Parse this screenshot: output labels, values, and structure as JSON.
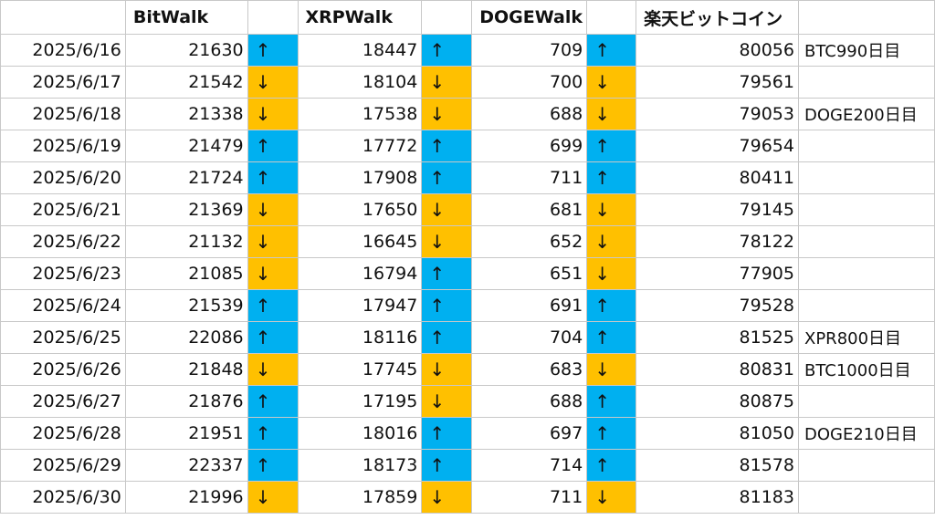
{
  "headers": [
    "",
    "BitWalk",
    "",
    "XRPWalk",
    "",
    "DOGEWalk",
    "",
    "楽天ビットコイン",
    ""
  ],
  "arrow_symbols": {
    "up": "↑",
    "down": "↓"
  },
  "colors": {
    "up": "#00b0f0",
    "down": "#ffc000",
    "grid": "#c8c8c8"
  },
  "rows": [
    {
      "date": "2025/6/16",
      "bit": "21630",
      "bit_dir": "up",
      "xrp": "18447",
      "xrp_dir": "up",
      "doge": "709",
      "doge_dir": "up",
      "rakuten": "80056",
      "note": "BTC990日目"
    },
    {
      "date": "2025/6/17",
      "bit": "21542",
      "bit_dir": "down",
      "xrp": "18104",
      "xrp_dir": "down",
      "doge": "700",
      "doge_dir": "down",
      "rakuten": "79561",
      "note": ""
    },
    {
      "date": "2025/6/18",
      "bit": "21338",
      "bit_dir": "down",
      "xrp": "17538",
      "xrp_dir": "down",
      "doge": "688",
      "doge_dir": "down",
      "rakuten": "79053",
      "note": "DOGE200日目"
    },
    {
      "date": "2025/6/19",
      "bit": "21479",
      "bit_dir": "up",
      "xrp": "17772",
      "xrp_dir": "up",
      "doge": "699",
      "doge_dir": "up",
      "rakuten": "79654",
      "note": ""
    },
    {
      "date": "2025/6/20",
      "bit": "21724",
      "bit_dir": "up",
      "xrp": "17908",
      "xrp_dir": "up",
      "doge": "711",
      "doge_dir": "up",
      "rakuten": "80411",
      "note": ""
    },
    {
      "date": "2025/6/21",
      "bit": "21369",
      "bit_dir": "down",
      "xrp": "17650",
      "xrp_dir": "down",
      "doge": "681",
      "doge_dir": "down",
      "rakuten": "79145",
      "note": ""
    },
    {
      "date": "2025/6/22",
      "bit": "21132",
      "bit_dir": "down",
      "xrp": "16645",
      "xrp_dir": "down",
      "doge": "652",
      "doge_dir": "down",
      "rakuten": "78122",
      "note": ""
    },
    {
      "date": "2025/6/23",
      "bit": "21085",
      "bit_dir": "down",
      "xrp": "16794",
      "xrp_dir": "up",
      "doge": "651",
      "doge_dir": "down",
      "rakuten": "77905",
      "note": ""
    },
    {
      "date": "2025/6/24",
      "bit": "21539",
      "bit_dir": "up",
      "xrp": "17947",
      "xrp_dir": "up",
      "doge": "691",
      "doge_dir": "up",
      "rakuten": "79528",
      "note": ""
    },
    {
      "date": "2025/6/25",
      "bit": "22086",
      "bit_dir": "up",
      "xrp": "18116",
      "xrp_dir": "up",
      "doge": "704",
      "doge_dir": "up",
      "rakuten": "81525",
      "note": "XPR800日目"
    },
    {
      "date": "2025/6/26",
      "bit": "21848",
      "bit_dir": "down",
      "xrp": "17745",
      "xrp_dir": "down",
      "doge": "683",
      "doge_dir": "down",
      "rakuten": "80831",
      "note": "BTC1000日目"
    },
    {
      "date": "2025/6/27",
      "bit": "21876",
      "bit_dir": "up",
      "xrp": "17195",
      "xrp_dir": "down",
      "doge": "688",
      "doge_dir": "up",
      "rakuten": "80875",
      "note": ""
    },
    {
      "date": "2025/6/28",
      "bit": "21951",
      "bit_dir": "up",
      "xrp": "18016",
      "xrp_dir": "up",
      "doge": "697",
      "doge_dir": "up",
      "rakuten": "81050",
      "note": "DOGE210日目"
    },
    {
      "date": "2025/6/29",
      "bit": "22337",
      "bit_dir": "up",
      "xrp": "18173",
      "xrp_dir": "up",
      "doge": "714",
      "doge_dir": "up",
      "rakuten": "81578",
      "note": ""
    },
    {
      "date": "2025/6/30",
      "bit": "21996",
      "bit_dir": "down",
      "xrp": "17859",
      "xrp_dir": "down",
      "doge": "711",
      "doge_dir": "down",
      "rakuten": "81183",
      "note": ""
    }
  ]
}
